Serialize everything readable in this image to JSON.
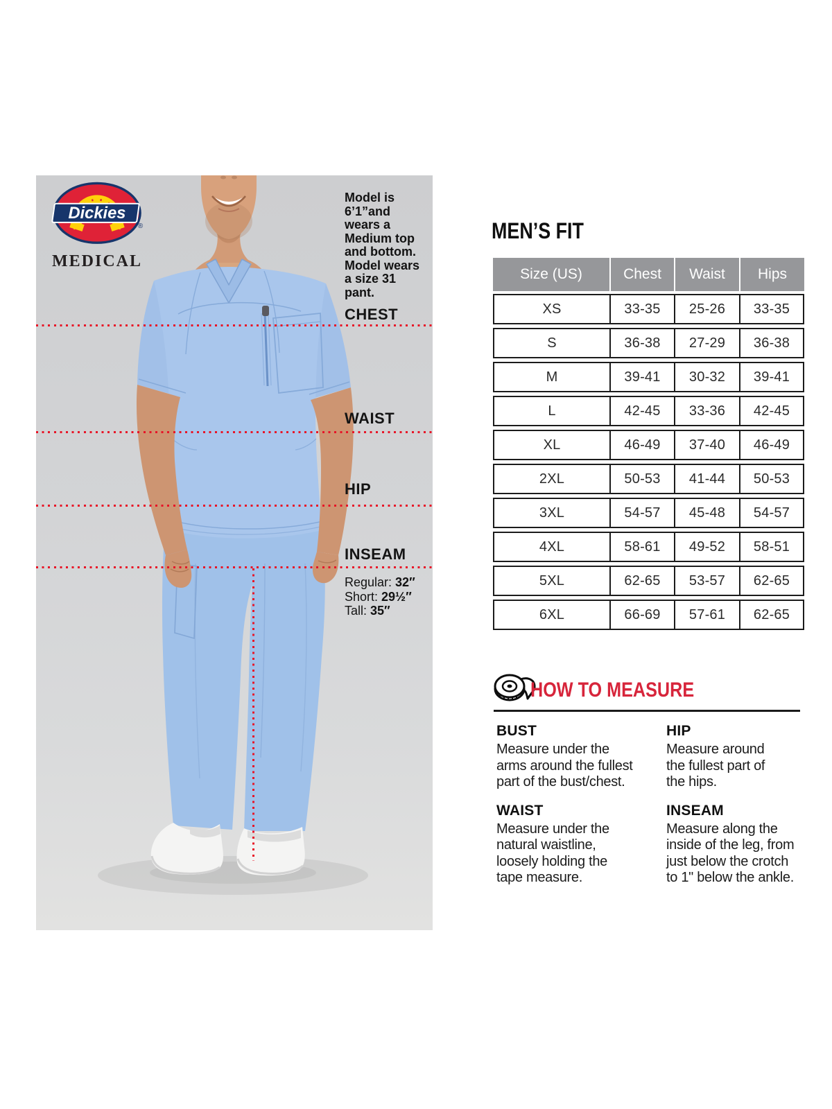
{
  "brand": {
    "logo_text": "Dickies",
    "registered": "®",
    "sub_brand": "MEDICAL"
  },
  "photo": {
    "model_note": "Model is\n6’1”and\nwears a\nMedium top\nand bottom.\nModel wears\na size 31 pant.",
    "labels": {
      "chest": "CHEST",
      "waist": "WAIST",
      "hip": "HIP",
      "inseam": "INSEAM"
    },
    "inseam_options": [
      {
        "label": "Regular:",
        "value": "32″"
      },
      {
        "label": "Short:",
        "value": "29½″"
      },
      {
        "label": "Tall:",
        "value": "35″"
      }
    ]
  },
  "section_title": "MEN’S FIT",
  "table": {
    "headers": [
      "Size (US)",
      "Chest",
      "Waist",
      "Hips"
    ],
    "rows": [
      [
        "XS",
        "33-35",
        "25-26",
        "33-35"
      ],
      [
        "S",
        "36-38",
        "27-29",
        "36-38"
      ],
      [
        "M",
        "39-41",
        "30-32",
        "39-41"
      ],
      [
        "L",
        "42-45",
        "33-36",
        "42-45"
      ],
      [
        "XL",
        "46-49",
        "37-40",
        "46-49"
      ],
      [
        "2XL",
        "50-53",
        "41-44",
        "50-53"
      ],
      [
        "3XL",
        "54-57",
        "45-48",
        "54-57"
      ],
      [
        "4XL",
        "58-61",
        "49-52",
        "58-51"
      ],
      [
        "5XL",
        "62-65",
        "53-57",
        "62-65"
      ],
      [
        "6XL",
        "66-69",
        "57-61",
        "62-65"
      ]
    ]
  },
  "how_to_measure": {
    "title": "HOW TO MEASURE",
    "icon": "tape-measure-icon",
    "items_left": [
      {
        "term": "BUST",
        "definition": "Measure under the\narms around the fullest\npart of the bust/chest."
      },
      {
        "term": "WAIST",
        "definition": "Measure under the\nnatural waistline,\nloosely holding the\ntape measure."
      }
    ],
    "items_right": [
      {
        "term": "HIP",
        "definition": "Measure around\nthe fullest part of\nthe hips."
      },
      {
        "term": "INSEAM",
        "definition": "Measure along the\ninside of the leg, from\njust below the crotch\nto 1\" below the ankle."
      }
    ]
  },
  "colors": {
    "accent_red": "#d7253b",
    "dotted_line_red": "#e81527",
    "table_header_bg": "#96979a",
    "scrub_blue": "#a9c6ec",
    "photo_bg": "#d3d4d6",
    "logo_red": "#df2237",
    "logo_navy": "#17356b",
    "logo_yellow": "#ffd10a"
  }
}
